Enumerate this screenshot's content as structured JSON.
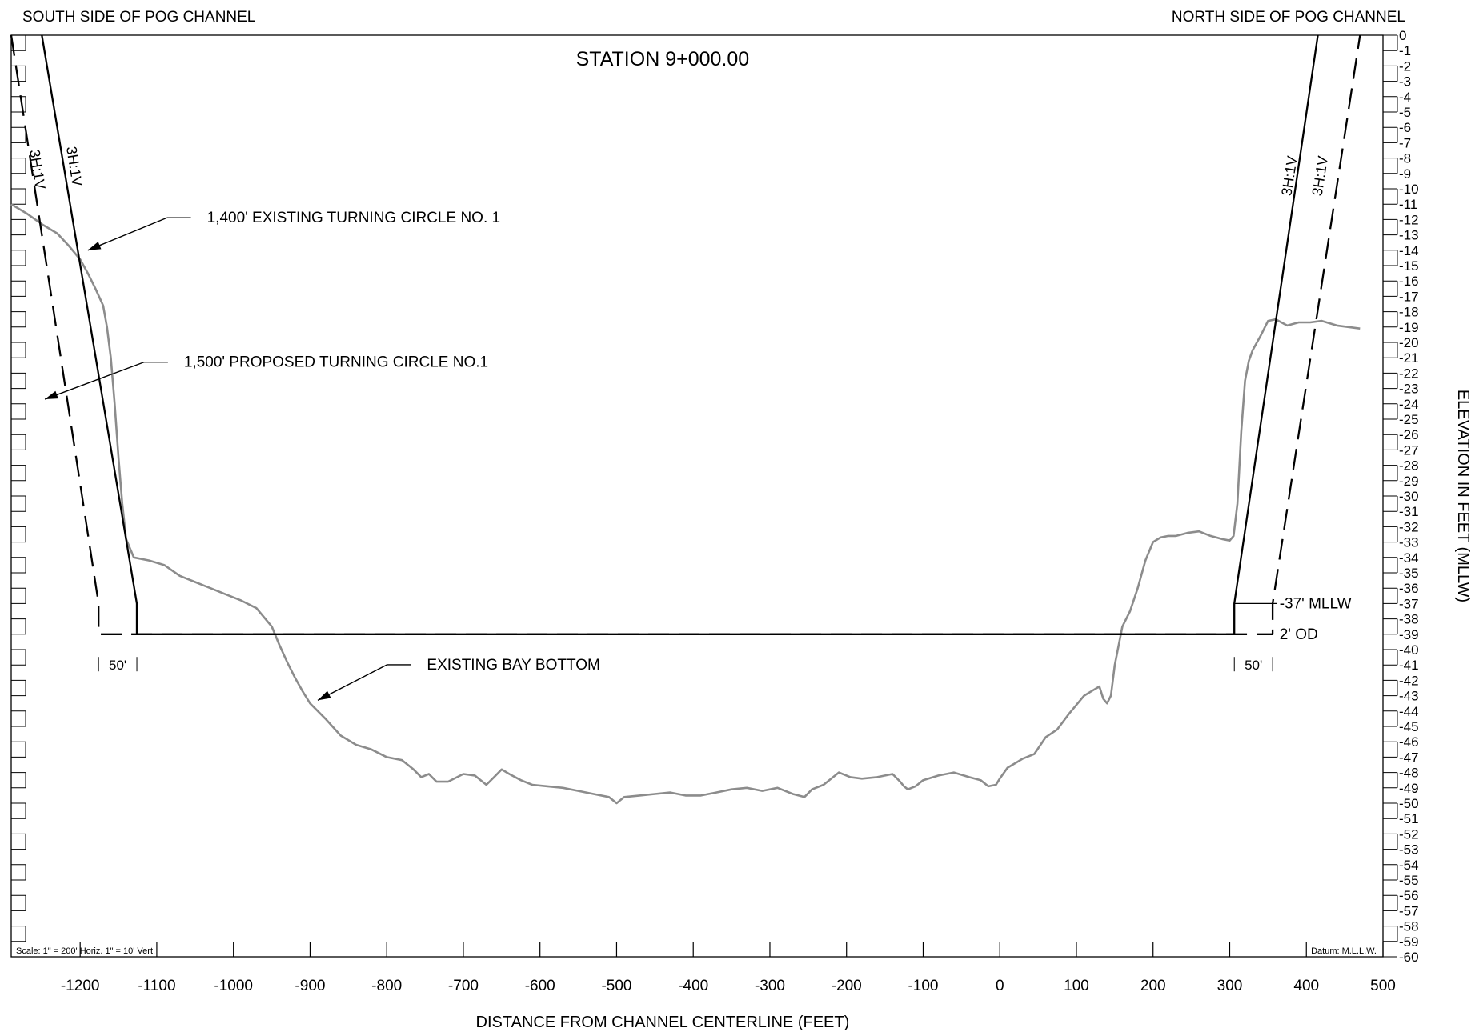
{
  "chart_data": {
    "type": "line",
    "title": "STATION 9+000.00",
    "xlabel": "DISTANCE FROM CHANNEL CENTERLINE (FEET)",
    "ylabel": "ELEVATION IN FEET (MLLW)",
    "xlim": [
      -1290,
      500
    ],
    "ylim": [
      -60,
      0
    ],
    "x_ticks": [
      -1200,
      -1100,
      -1000,
      -900,
      -800,
      -700,
      -600,
      -500,
      -400,
      -300,
      -200,
      -100,
      0,
      100,
      200,
      300,
      400,
      500
    ],
    "y_ticks": [
      0,
      -1,
      -2,
      -3,
      -4,
      -5,
      -6,
      -7,
      -8,
      -9,
      -10,
      -11,
      -12,
      -13,
      -14,
      -15,
      -16,
      -17,
      -18,
      -19,
      -20,
      -21,
      -22,
      -23,
      -24,
      -25,
      -26,
      -27,
      -28,
      -29,
      -30,
      -31,
      -32,
      -33,
      -34,
      -35,
      -36,
      -37,
      -38,
      -39,
      -40,
      -41,
      -42,
      -43,
      -44,
      -45,
      -46,
      -47,
      -48,
      -49,
      -50,
      -51,
      -52,
      -53,
      -54,
      -55,
      -56,
      -57,
      -58,
      -59,
      -60
    ],
    "grid": false,
    "series": [
      {
        "name": "EXISTING BAY BOTTOM",
        "color": "#8c8c8c",
        "x": [
          -1290,
          -1270,
          -1250,
          -1230,
          -1215,
          -1200,
          -1190,
          -1180,
          -1170,
          -1165,
          -1160,
          -1155,
          -1150,
          -1145,
          -1140,
          -1130,
          -1110,
          -1090,
          -1070,
          -1050,
          -1030,
          -1010,
          -990,
          -970,
          -950,
          -940,
          -930,
          -920,
          -910,
          -900,
          -880,
          -860,
          -840,
          -820,
          -800,
          -780,
          -765,
          -755,
          -745,
          -735,
          -720,
          -700,
          -685,
          -670,
          -660,
          -650,
          -640,
          -625,
          -610,
          -590,
          -570,
          -550,
          -530,
          -510,
          -500,
          -490,
          -470,
          -450,
          -430,
          -410,
          -390,
          -370,
          -350,
          -330,
          -310,
          -290,
          -270,
          -255,
          -245,
          -230,
          -210,
          -195,
          -180,
          -160,
          -140,
          -130,
          -125,
          -120,
          -110,
          -100,
          -80,
          -60,
          -40,
          -25,
          -15,
          -5,
          0,
          10,
          30,
          45,
          60,
          75,
          90,
          100,
          110,
          120,
          130,
          135,
          140,
          145,
          150,
          160,
          170,
          180,
          190,
          200,
          210,
          220,
          230,
          245,
          260,
          275,
          290,
          300,
          305,
          310,
          315,
          320,
          325,
          330,
          340,
          350,
          360,
          375,
          390,
          405,
          420,
          440,
          455,
          470
        ],
        "y": [
          -11,
          -11.6,
          -12.3,
          -12.9,
          -13.7,
          -14.6,
          -15.5,
          -16.5,
          -17.6,
          -19.0,
          -21.0,
          -24.0,
          -27.5,
          -30.5,
          -32.8,
          -34,
          -34.2,
          -34.5,
          -35.2,
          -35.6,
          -36,
          -36.4,
          -36.8,
          -37.3,
          -38.5,
          -39.7,
          -40.8,
          -41.8,
          -42.7,
          -43.5,
          -44.5,
          -45.6,
          -46.2,
          -46.5,
          -47,
          -47.2,
          -47.8,
          -48.3,
          -48.1,
          -48.6,
          -48.6,
          -48.1,
          -48.2,
          -48.8,
          -48.3,
          -47.8,
          -48.1,
          -48.5,
          -48.8,
          -48.9,
          -49.0,
          -49.2,
          -49.4,
          -49.6,
          -50.0,
          -49.6,
          -49.5,
          -49.4,
          -49.3,
          -49.5,
          -49.5,
          -49.3,
          -49.1,
          -49.0,
          -49.2,
          -49.0,
          -49.4,
          -49.6,
          -49.1,
          -48.8,
          -48.0,
          -48.3,
          -48.4,
          -48.3,
          -48.1,
          -48.6,
          -48.9,
          -49.1,
          -48.9,
          -48.5,
          -48.2,
          -48.0,
          -48.3,
          -48.5,
          -48.9,
          -48.8,
          -48.4,
          -47.7,
          -47.1,
          -46.8,
          -45.7,
          -45.2,
          -44.2,
          -43.6,
          -43.0,
          -42.7,
          -42.4,
          -43.2,
          -43.5,
          -43.0,
          -41.0,
          -38.5,
          -37.5,
          -36.0,
          -34.2,
          -33.0,
          -32.7,
          -32.6,
          -32.6,
          -32.4,
          -32.3,
          -32.6,
          -32.8,
          -32.9,
          -32.6,
          -30.5,
          -25.8,
          -22.5,
          -21.2,
          -20.5,
          -19.6,
          -18.6,
          -18.5,
          -18.9,
          -18.7,
          -18.7,
          -18.6,
          -18.9,
          -19.0,
          -19.1
        ]
      },
      {
        "name": "1,400' EXISTING TURNING CIRCLE NO. 1",
        "color": "#000000",
        "x": [
          -1250,
          -1126,
          -1126,
          306,
          306,
          415
        ],
        "y": [
          0,
          -37,
          -39,
          -39,
          -37,
          0
        ]
      },
      {
        "name": "1,500' PROPOSED TURNING CIRCLE NO.1",
        "color": "#000000",
        "dashed": true,
        "x": [
          -1290,
          -1176,
          -1176,
          -1126,
          306,
          356,
          356,
          470
        ],
        "y": [
          0,
          -37,
          -39,
          -39,
          -39,
          -39,
          -37,
          0
        ]
      }
    ],
    "annotations": {
      "south_side": "SOUTH SIDE OF POG CHANNEL",
      "north_side": "NORTH SIDE OF POG CHANNEL",
      "existing_circle": "1,400' EXISTING TURNING CIRCLE NO. 1",
      "proposed_circle": "1,500' PROPOSED TURNING CIRCLE NO.1",
      "bay_bottom": "EXISTING BAY BOTTOM",
      "slope": "3H:1V",
      "mllw": "-37' MLLW",
      "overdredge": "2' OD",
      "offset": "50'",
      "scale": "Scale: 1\" = 200' Horiz. 1\" = 10' Vert.",
      "datum": "Datum: M.L.L.W."
    }
  }
}
